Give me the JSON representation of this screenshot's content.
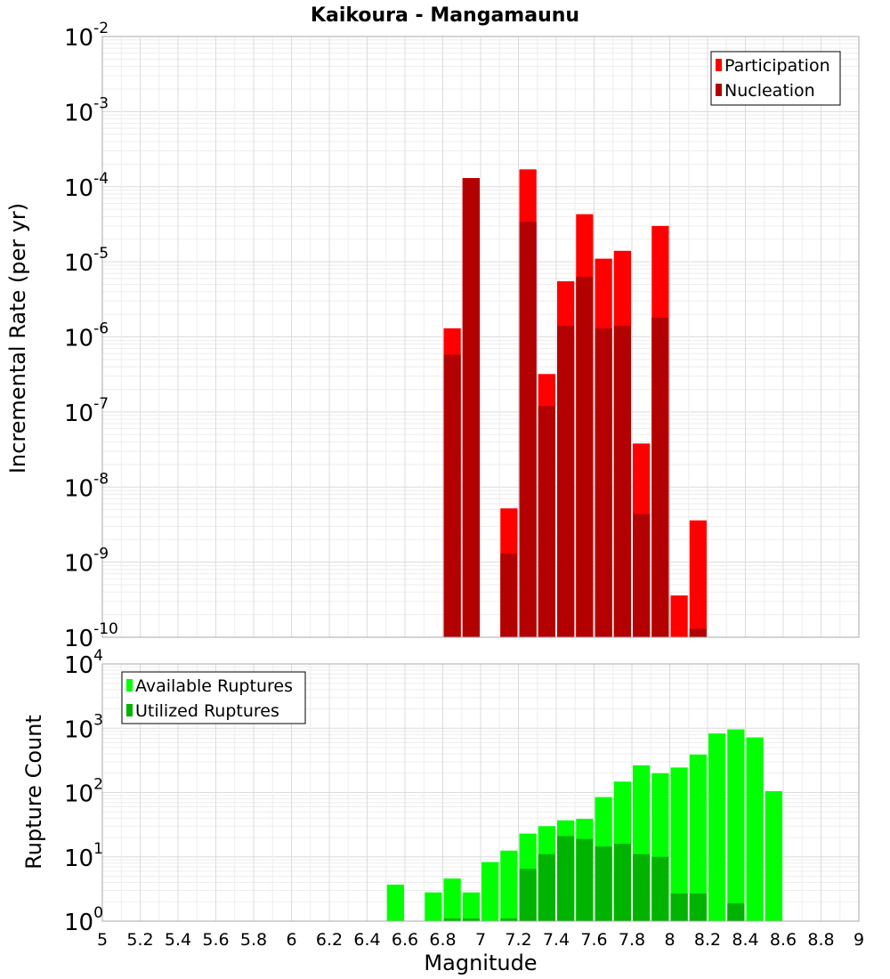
{
  "chart_data": [
    {
      "type": "bar",
      "title": "Kaikoura - Mangamaunu",
      "xlabel": "",
      "ylabel": "Incremental Rate (per yr)",
      "y_scale": "log",
      "ylim": [
        1e-10,
        0.01
      ],
      "xlim": [
        5,
        9
      ],
      "bin_width": 0.1,
      "grid": true,
      "legend_position": "top-right",
      "y_ticks": [
        {
          "base": "10",
          "exp": "-10",
          "value": 1e-10
        },
        {
          "base": "10",
          "exp": "-9",
          "value": 1e-09
        },
        {
          "base": "10",
          "exp": "-8",
          "value": 1e-08
        },
        {
          "base": "10",
          "exp": "-7",
          "value": 1e-07
        },
        {
          "base": "10",
          "exp": "-6",
          "value": 1e-06
        },
        {
          "base": "10",
          "exp": "-5",
          "value": 1e-05
        },
        {
          "base": "10",
          "exp": "-4",
          "value": 0.0001
        },
        {
          "base": "10",
          "exp": "-3",
          "value": 0.001
        },
        {
          "base": "10",
          "exp": "-2",
          "value": 0.01
        }
      ],
      "series": [
        {
          "name": "Participation",
          "color": "#ff0000",
          "points": [
            {
              "x": 6.85,
              "y": 1.3e-06
            },
            {
              "x": 6.95,
              "y": 0.00013
            },
            {
              "x": 7.15,
              "y": 5.2e-09
            },
            {
              "x": 7.25,
              "y": 0.00017
            },
            {
              "x": 7.35,
              "y": 3.2e-07
            },
            {
              "x": 7.45,
              "y": 5.5e-06
            },
            {
              "x": 7.55,
              "y": 4.3e-05
            },
            {
              "x": 7.65,
              "y": 1.1e-05
            },
            {
              "x": 7.75,
              "y": 1.4e-05
            },
            {
              "x": 7.85,
              "y": 3.8e-08
            },
            {
              "x": 7.95,
              "y": 3e-05
            },
            {
              "x": 8.05,
              "y": 3.6e-10
            },
            {
              "x": 8.15,
              "y": 3.6e-09
            }
          ]
        },
        {
          "name": "Nucleation",
          "color": "#b30000",
          "points": [
            {
              "x": 6.85,
              "y": 5.8e-07
            },
            {
              "x": 6.95,
              "y": 0.00013
            },
            {
              "x": 7.15,
              "y": 1.3e-09
            },
            {
              "x": 7.25,
              "y": 3.4e-05
            },
            {
              "x": 7.35,
              "y": 1.2e-07
            },
            {
              "x": 7.45,
              "y": 1.4e-06
            },
            {
              "x": 7.55,
              "y": 6.3e-06
            },
            {
              "x": 7.65,
              "y": 1.3e-06
            },
            {
              "x": 7.75,
              "y": 1.4e-06
            },
            {
              "x": 7.85,
              "y": 4.4e-09
            },
            {
              "x": 7.95,
              "y": 1.8e-06
            },
            {
              "x": 8.15,
              "y": 1.3e-10
            }
          ]
        }
      ]
    },
    {
      "type": "bar",
      "title": "",
      "xlabel": "Magnitude",
      "ylabel": "Rupture Count",
      "y_scale": "log",
      "ylim": [
        1,
        10000
      ],
      "xlim": [
        5,
        9
      ],
      "bin_width": 0.1,
      "grid": true,
      "legend_position": "top-left",
      "x_ticks": [
        "5",
        "5.2",
        "5.4",
        "5.6",
        "5.8",
        "6",
        "6.2",
        "6.4",
        "6.6",
        "6.8",
        "7",
        "7.2",
        "7.4",
        "7.6",
        "7.8",
        "8",
        "8.2",
        "8.4",
        "8.6",
        "8.8",
        "9"
      ],
      "y_ticks": [
        {
          "base": "10",
          "exp": "0",
          "value": 1
        },
        {
          "base": "10",
          "exp": "1",
          "value": 10
        },
        {
          "base": "10",
          "exp": "2",
          "value": 100
        },
        {
          "base": "10",
          "exp": "3",
          "value": 1000
        },
        {
          "base": "10",
          "exp": "4",
          "value": 10000
        }
      ],
      "series": [
        {
          "name": "Available Ruptures",
          "color": "#00ff00",
          "points": [
            {
              "x": 6.55,
              "y": 3.7
            },
            {
              "x": 6.75,
              "y": 2.8
            },
            {
              "x": 6.85,
              "y": 4.6
            },
            {
              "x": 6.95,
              "y": 2.8
            },
            {
              "x": 7.05,
              "y": 8.3
            },
            {
              "x": 7.15,
              "y": 12.5
            },
            {
              "x": 7.25,
              "y": 23
            },
            {
              "x": 7.35,
              "y": 30
            },
            {
              "x": 7.45,
              "y": 37
            },
            {
              "x": 7.55,
              "y": 39
            },
            {
              "x": 7.65,
              "y": 85
            },
            {
              "x": 7.75,
              "y": 148
            },
            {
              "x": 7.85,
              "y": 265
            },
            {
              "x": 7.95,
              "y": 200
            },
            {
              "x": 8.05,
              "y": 245
            },
            {
              "x": 8.15,
              "y": 390
            },
            {
              "x": 8.25,
              "y": 830
            },
            {
              "x": 8.35,
              "y": 960
            },
            {
              "x": 8.45,
              "y": 720
            },
            {
              "x": 8.55,
              "y": 105
            }
          ]
        },
        {
          "name": "Utilized Ruptures",
          "color": "#00b300",
          "points": [
            {
              "x": 6.85,
              "y": 1.1
            },
            {
              "x": 6.95,
              "y": 1.1
            },
            {
              "x": 7.15,
              "y": 1.1
            },
            {
              "x": 7.25,
              "y": 6.5
            },
            {
              "x": 7.35,
              "y": 11
            },
            {
              "x": 7.45,
              "y": 21
            },
            {
              "x": 7.55,
              "y": 19
            },
            {
              "x": 7.65,
              "y": 14.5
            },
            {
              "x": 7.75,
              "y": 16
            },
            {
              "x": 7.85,
              "y": 11
            },
            {
              "x": 7.95,
              "y": 10
            },
            {
              "x": 8.05,
              "y": 2.7
            },
            {
              "x": 8.15,
              "y": 2.7
            },
            {
              "x": 8.35,
              "y": 1.9
            }
          ]
        }
      ]
    }
  ]
}
